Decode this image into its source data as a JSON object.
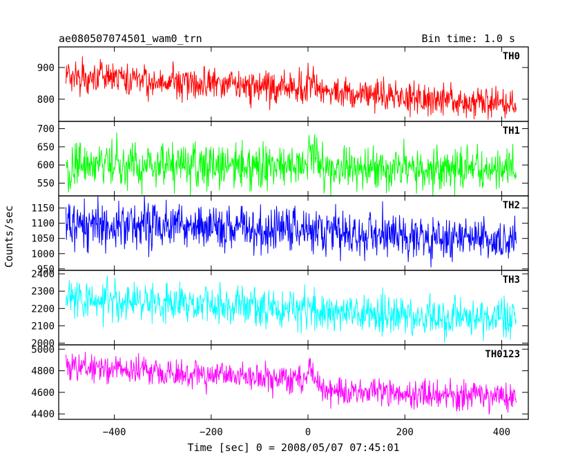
{
  "chart_data": {
    "type": "line",
    "title": "ae080507074501_wam0_trn",
    "subtitle": "Bin time: 1.0 s",
    "xlabel": "Time [sec] 0 = 2008/05/07 07:45:01",
    "ylabel": "Counts/sec",
    "xlim": [
      -515,
      455
    ],
    "x_ticks": [
      -400,
      -200,
      0,
      200,
      400
    ],
    "x_tick_labels": [
      "−400",
      "−200",
      "0",
      "200",
      "400"
    ],
    "x_range": [
      -500,
      430
    ],
    "grid": false,
    "panels": [
      {
        "name": "TH0",
        "color": "#ff0000",
        "ylim": [
          730,
          965
        ],
        "yticks": [
          800,
          900
        ],
        "baseline": [
          [
            -500,
            872
          ],
          [
            0,
            832
          ],
          [
            30,
            826
          ],
          [
            430,
            784
          ]
        ],
        "noise": 26,
        "spikes": [
          [
            0,
            30,
            40
          ]
        ]
      },
      {
        "name": "TH1",
        "color": "#00ff00",
        "ylim": [
          515,
          720
        ],
        "yticks": [
          550,
          600,
          650,
          700
        ],
        "baseline": [
          [
            -500,
            600
          ],
          [
            0,
            598
          ],
          [
            30,
            590
          ],
          [
            430,
            587
          ]
        ],
        "noise": 30,
        "spikes": [
          [
            0,
            30,
            58
          ]
        ]
      },
      {
        "name": "TH2",
        "color": "#0000ff",
        "ylim": [
          945,
          1190
        ],
        "yticks": [
          950,
          1000,
          1050,
          1100,
          1150
        ],
        "baseline": [
          [
            -500,
            1098
          ],
          [
            0,
            1078
          ],
          [
            30,
            1068
          ],
          [
            430,
            1040
          ]
        ],
        "noise": 38,
        "spikes": [
          [
            0,
            30,
            18
          ]
        ]
      },
      {
        "name": "TH3",
        "color": "#00ffff",
        "ylim": [
          1990,
          2420
        ],
        "yticks": [
          2000,
          2100,
          2200,
          2300,
          2400
        ],
        "baseline": [
          [
            -500,
            2262
          ],
          [
            0,
            2190
          ],
          [
            30,
            2178
          ],
          [
            430,
            2148
          ]
        ],
        "noise": 55,
        "spikes": []
      },
      {
        "name": "TH0123",
        "color": "#ff00ff",
        "ylim": [
          4350,
          5040
        ],
        "yticks": [
          4400,
          4600,
          4800,
          5000
        ],
        "baseline": [
          [
            -500,
            4842
          ],
          [
            0,
            4712
          ],
          [
            30,
            4610
          ],
          [
            430,
            4560
          ]
        ],
        "noise": 65,
        "spikes": [
          [
            0,
            30,
            180
          ]
        ]
      }
    ]
  }
}
